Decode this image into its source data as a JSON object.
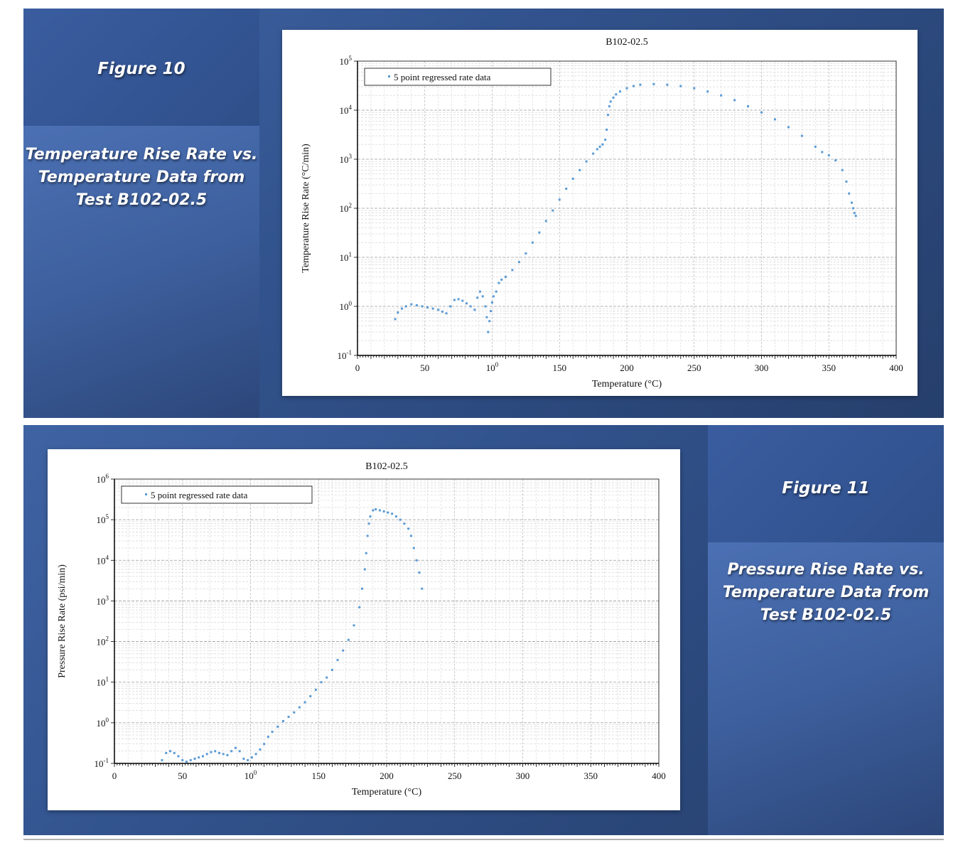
{
  "figures": [
    {
      "label": "Figure 10",
      "caption_lines": [
        "Temperature Rise Rate vs.",
        "Temperature Data from",
        "Test B102-02.5"
      ]
    },
    {
      "label": "Figure 11",
      "caption_lines": [
        "Pressure Rise Rate vs.",
        "Temperature Data from",
        "Test B102-02.5"
      ]
    }
  ],
  "colors": {
    "panel_blue": "#31528c",
    "marker_blue": "#5b9bd5",
    "caption_text": "#ffffff"
  },
  "chart_data": [
    {
      "type": "scatter",
      "title": "B102-02.5",
      "xlabel": "Temperature (°C)",
      "ylabel": "Temperature Rise Rate (°C/min)",
      "legend": "5 point regressed rate data",
      "legend_position": "top-left",
      "x_scale": "linear",
      "y_scale": "log",
      "xlim": [
        0,
        400
      ],
      "ylim": [
        0.1,
        100000
      ],
      "x_ticks": [
        "0",
        "50",
        "100",
        "150",
        "200",
        "250",
        "300",
        "350",
        "400"
      ],
      "y_ticks": [
        "10-1",
        "100",
        "101",
        "102",
        "103",
        "104",
        "105"
      ],
      "grid": true,
      "series": [
        {
          "name": "5 point regressed rate data",
          "x": [
            28,
            30,
            33,
            36,
            40,
            44,
            48,
            52,
            56,
            60,
            63,
            66,
            69,
            72,
            75,
            78,
            81,
            84,
            87,
            89,
            91,
            93,
            95,
            96,
            97,
            98,
            99,
            100,
            101,
            103,
            105,
            107,
            110,
            115,
            120,
            125,
            130,
            135,
            140,
            145,
            150,
            155,
            160,
            165,
            170,
            175,
            178,
            180,
            182,
            184,
            185,
            186,
            187,
            188,
            190,
            192,
            195,
            200,
            205,
            210,
            220,
            230,
            240,
            250,
            260,
            270,
            280,
            290,
            300,
            310,
            320,
            330,
            340,
            345,
            350,
            355,
            360,
            363,
            365,
            367,
            368,
            369,
            370
          ],
          "y": [
            0.55,
            0.75,
            0.9,
            1.0,
            1.1,
            1.05,
            1.0,
            0.95,
            0.9,
            0.85,
            0.78,
            0.72,
            1.0,
            1.35,
            1.4,
            1.3,
            1.15,
            1.0,
            0.85,
            1.5,
            2.0,
            1.6,
            1.0,
            0.6,
            0.3,
            0.5,
            0.8,
            1.2,
            1.6,
            2.0,
            3.0,
            3.5,
            4.0,
            5.5,
            8,
            12,
            20,
            32,
            55,
            90,
            150,
            250,
            400,
            600,
            900,
            1300,
            1600,
            1800,
            2000,
            2500,
            4000,
            8000,
            12000,
            15000,
            18000,
            21000,
            24000,
            28000,
            31000,
            33000,
            34000,
            33000,
            31000,
            28000,
            24000,
            20000,
            16000,
            12000,
            9000,
            6500,
            4500,
            3000,
            1800,
            1400,
            1200,
            950,
            600,
            350,
            200,
            130,
            100,
            80,
            70
          ]
        }
      ]
    },
    {
      "type": "scatter",
      "title": "B102-02.5",
      "xlabel": "Temperature (°C)",
      "ylabel": "Pressure Rise Rate (psi/min)",
      "legend": "5 point regressed rate data",
      "legend_position": "top-left",
      "x_scale": "linear",
      "y_scale": "log",
      "xlim": [
        0,
        400
      ],
      "ylim": [
        0.1,
        1000000
      ],
      "x_ticks": [
        "0",
        "50",
        "100",
        "150",
        "200",
        "250",
        "300",
        "350",
        "400"
      ],
      "y_ticks": [
        "10-1",
        "100",
        "101",
        "102",
        "103",
        "104",
        "105",
        "106"
      ],
      "grid": true,
      "series": [
        {
          "name": "5 point regressed rate data",
          "x": [
            35,
            38,
            41,
            44,
            47,
            50,
            53,
            56,
            59,
            62,
            65,
            68,
            71,
            74,
            77,
            80,
            83,
            86,
            89,
            92,
            95,
            98,
            101,
            104,
            107,
            110,
            113,
            116,
            120,
            124,
            128,
            132,
            136,
            140,
            144,
            148,
            152,
            156,
            160,
            164,
            168,
            172,
            176,
            180,
            182,
            184,
            185,
            186,
            187,
            188,
            190,
            192,
            195,
            198,
            201,
            204,
            207,
            210,
            213,
            216,
            218,
            220,
            222,
            224,
            226
          ],
          "y": [
            0.12,
            0.18,
            0.2,
            0.18,
            0.15,
            0.12,
            0.11,
            0.12,
            0.13,
            0.14,
            0.15,
            0.17,
            0.19,
            0.2,
            0.18,
            0.17,
            0.16,
            0.2,
            0.24,
            0.2,
            0.13,
            0.12,
            0.14,
            0.17,
            0.22,
            0.3,
            0.45,
            0.6,
            0.8,
            1.1,
            1.4,
            1.8,
            2.4,
            3.2,
            4.5,
            6.5,
            10,
            13,
            20,
            35,
            60,
            110,
            250,
            700,
            2000,
            6000,
            15000,
            40000,
            80000,
            120000,
            170000,
            180000,
            170000,
            160000,
            150000,
            140000,
            120000,
            100000,
            80000,
            60000,
            40000,
            20000,
            10000,
            5000,
            2000
          ]
        }
      ]
    }
  ]
}
